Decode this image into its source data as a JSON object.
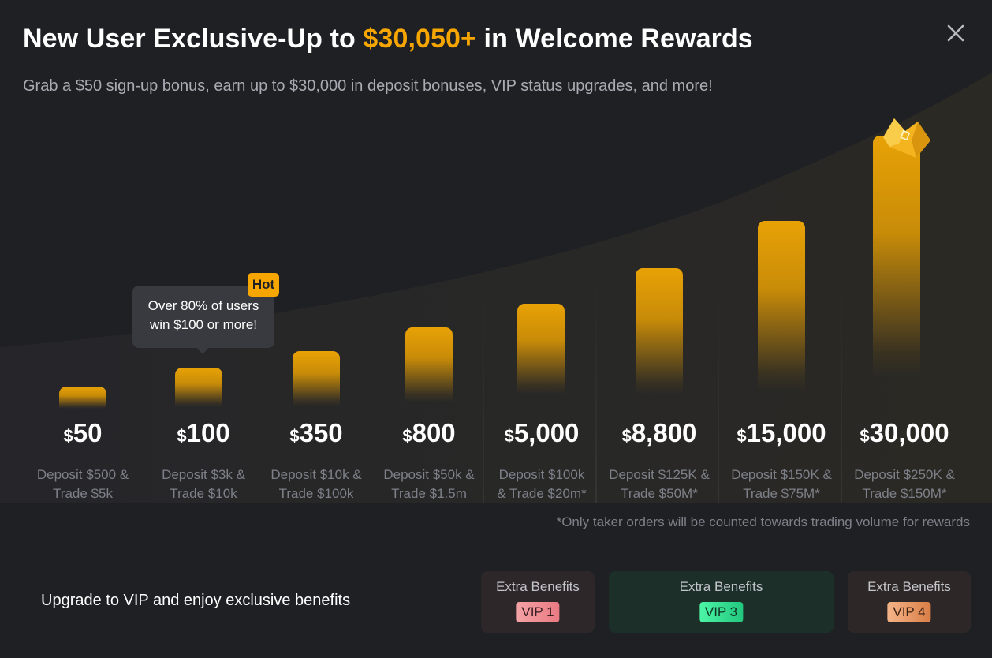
{
  "header": {
    "title_prefix": "New User Exclusive-Up to ",
    "title_highlight": "$30,050+",
    "title_suffix": " in Welcome Rewards",
    "subtitle": "Grab a $50 sign-up bonus, earn up to $30,000 in deposit bonuses, VIP status upgrades, and more!"
  },
  "colors": {
    "accent": "#f7a600",
    "background": "#1f2024",
    "muted_text": "#7e8089"
  },
  "tooltip": {
    "text_line1": "Over 80% of users",
    "text_line2": "win $100 or more!",
    "badge": "Hot"
  },
  "tiers": [
    {
      "currency": "$",
      "amount": "50",
      "req1": "Deposit $500 &",
      "req2": "Trade $5k"
    },
    {
      "currency": "$",
      "amount": "100",
      "req1": "Deposit $3k &",
      "req2": "Trade $10k"
    },
    {
      "currency": "$",
      "amount": "350",
      "req1": "Deposit $10k &",
      "req2": "Trade $100k"
    },
    {
      "currency": "$",
      "amount": "800",
      "req1": "Deposit $50k &",
      "req2": "Trade $1.5m"
    },
    {
      "currency": "$",
      "amount": "5,000",
      "req1": "Deposit $100k",
      "req2": "& Trade $20m*"
    },
    {
      "currency": "$",
      "amount": "8,800",
      "req1": "Deposit $125K &",
      "req2": "Trade $50M*"
    },
    {
      "currency": "$",
      "amount": "15,000",
      "req1": "Deposit $150K &",
      "req2": "Trade $75M*"
    },
    {
      "currency": "$",
      "amount": "30,000",
      "req1": "Deposit $250K &",
      "req2": "Trade $150M*"
    }
  ],
  "footnote": "*Only taker orders will be counted towards trading volume for rewards",
  "vip": {
    "prompt": "Upgrade to VIP and enjoy exclusive benefits",
    "benefits": [
      {
        "label": "Extra Benefits",
        "badge": "VIP 1"
      },
      {
        "label": "Extra Benefits",
        "badge": "VIP 3"
      },
      {
        "label": "Extra Benefits",
        "badge": "VIP 4"
      }
    ]
  },
  "icons": {
    "close": "close-icon",
    "crown": "crown-icon"
  }
}
